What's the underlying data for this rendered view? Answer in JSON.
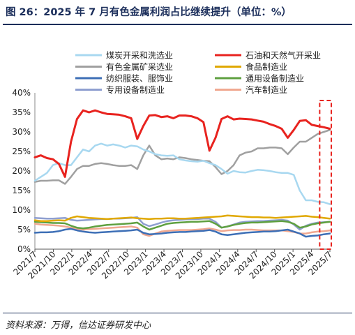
{
  "header": {
    "title": "图 26：2025 年 7 月有色金属利润占比继续提升（单位：%）"
  },
  "footer": {
    "source": "资料来源：万得，信达证券研发中心"
  },
  "chart_data": {
    "type": "line",
    "title": "",
    "xlabel": "",
    "ylabel": "",
    "ylim": [
      0,
      40
    ],
    "y_ticks": [
      "0%",
      "5%",
      "10%",
      "15%",
      "20%",
      "25%",
      "30%",
      "35%",
      "40%"
    ],
    "x_ticks": [
      "2021/7",
      "2021/10",
      "2022/1",
      "2022/4",
      "2022/7",
      "2022/10",
      "2023/1",
      "2023/4",
      "2023/7",
      "2023/10",
      "2024/1",
      "2024/4",
      "2024/7",
      "2024/10",
      "2025/1",
      "2025/4",
      "2025/7"
    ],
    "legend_placement": "top",
    "highlight": "dashed red box around the last two months",
    "series": [
      {
        "name": "煤炭开采和洗选业",
        "color": "#a8d8f0",
        "values": [
          17.5,
          18.5,
          19.5,
          21.5,
          22,
          21.5,
          21.5,
          23.5,
          25.5,
          25,
          26.5,
          27,
          26.5,
          26.8,
          26.5,
          26,
          26.5,
          26.3,
          25.5,
          25,
          24.3,
          24,
          23.9,
          24,
          23,
          22.7,
          22.5,
          22.4,
          22.6,
          22,
          21.5,
          20.5,
          19.3,
          20,
          19.7,
          19.6,
          20,
          20.3,
          20.2,
          20,
          19.7,
          19.5,
          19.5,
          19,
          15,
          12.5,
          12.5,
          12.1,
          12,
          11.5
        ]
      },
      {
        "name": "石油和天然气开采业",
        "color": "#e8231f",
        "values": [
          23.5,
          24,
          23.3,
          23,
          21.8,
          18.5,
          27.5,
          33.3,
          35.5,
          35,
          35.5,
          35,
          34.6,
          34.5,
          34.4,
          34,
          33.5,
          28.2,
          31.5,
          34.2,
          34.3,
          33.8,
          34,
          33.5,
          34.2,
          34.2,
          34,
          33.5,
          32.5,
          25.2,
          28.5,
          33.3,
          34,
          33.2,
          33.4,
          33.3,
          33.2,
          32.9,
          32.6,
          32,
          31.5,
          30.8,
          28.5,
          30.5,
          32.8,
          33,
          31.8,
          31.5,
          31.2,
          30.8
        ]
      },
      {
        "name": "有色金属矿采选业",
        "color": "#a0a0a0",
        "values": [
          17.2,
          17.5,
          17.5,
          17.6,
          17.6,
          16.7,
          18.5,
          20.5,
          21.3,
          21.3,
          21.8,
          22,
          21.8,
          21.5,
          21.3,
          21.3,
          21.5,
          20.5,
          24,
          26.5,
          24,
          23,
          23.2,
          23,
          23.5,
          23.3,
          23,
          22.8,
          22.6,
          22.5,
          21,
          19.2,
          20,
          21.5,
          24,
          24.7,
          25,
          25.8,
          25.8,
          26,
          26,
          25.8,
          24.3,
          26,
          27.5,
          27.5,
          28.5,
          29.5,
          30,
          30.5
        ]
      },
      {
        "name": "食品制造业",
        "color": "#e0a800",
        "values": [
          7.4,
          7.2,
          7.2,
          7.3,
          7.4,
          7.3,
          8.0,
          8.4,
          8.2,
          8.0,
          7.9,
          7.8,
          7.7,
          7.8,
          7.9,
          8.0,
          8.1,
          7.9,
          7.8,
          7.7,
          7.8,
          7.8,
          7.9,
          7.9,
          7.8,
          7.8,
          7.9,
          8.0,
          8.1,
          8.2,
          8.3,
          8.4,
          8.6,
          8.5,
          8.4,
          8.3,
          8.2,
          8.2,
          8.1,
          8.1,
          8.0,
          8.1,
          8.2,
          8.3,
          8.4,
          8.5,
          8.3,
          8.2,
          8.0,
          7.8
        ]
      },
      {
        "name": "纺织服装、服饰业",
        "color": "#3d6fb6",
        "values": [
          4.2,
          4.3,
          4.3,
          4.4,
          4.6,
          5.0,
          5.2,
          4.8,
          4.5,
          4.3,
          4.2,
          4.3,
          4.4,
          4.5,
          4.6,
          4.7,
          4.8,
          5.0,
          4.2,
          3.8,
          3.9,
          4.0,
          4.2,
          4.3,
          4.4,
          4.4,
          4.5,
          4.6,
          4.7,
          4.9,
          4.5,
          3.8,
          3.6,
          3.8,
          4.0,
          4.2,
          4.3,
          4.4,
          4.5,
          4.5,
          4.6,
          4.8,
          5.0,
          4.5,
          4.0,
          3.2,
          3.4,
          3.5,
          3.8,
          4.0
        ]
      },
      {
        "name": "通用设备制造业",
        "color": "#5fa040",
        "values": [
          7.0,
          6.9,
          6.8,
          6.7,
          6.7,
          6.6,
          6.0,
          5.5,
          5.3,
          5.5,
          5.8,
          6.0,
          6.2,
          6.3,
          6.4,
          6.5,
          6.6,
          6.8,
          5.8,
          5.0,
          5.5,
          6.0,
          6.5,
          6.7,
          6.8,
          6.9,
          7.0,
          7.0,
          7.1,
          7.2,
          6.5,
          5.5,
          5.8,
          6.2,
          6.5,
          6.7,
          6.8,
          6.8,
          6.9,
          7.0,
          7.1,
          7.2,
          7.0,
          6.5,
          5.5,
          5.8,
          6.3,
          6.6,
          6.8,
          7.0
        ]
      },
      {
        "name": "专用设备制造业",
        "color": "#8f9fd0",
        "values": [
          8.0,
          7.9,
          7.8,
          7.8,
          7.9,
          8.0,
          7.5,
          7.3,
          7.4,
          7.5,
          7.6,
          7.7,
          7.7,
          7.8,
          7.8,
          7.9,
          8.0,
          8.2,
          6.5,
          5.9,
          6.3,
          6.8,
          7.2,
          7.4,
          7.5,
          7.6,
          7.7,
          7.7,
          7.8,
          7.8,
          7.0,
          5.5,
          5.8,
          6.3,
          6.8,
          7.0,
          7.1,
          7.2,
          7.2,
          7.3,
          7.4,
          7.5,
          7.3,
          6.3,
          5.0,
          6.0,
          6.5,
          6.8,
          6.9,
          7.0
        ]
      },
      {
        "name": "汽车制造业",
        "color": "#f0a890",
        "values": [
          6.5,
          6.3,
          6.2,
          6.1,
          6.0,
          5.8,
          5.5,
          5.2,
          5.0,
          5.1,
          5.2,
          5.3,
          5.4,
          5.5,
          5.6,
          5.7,
          5.8,
          5.5,
          3.8,
          3.4,
          4.0,
          4.5,
          4.7,
          4.8,
          4.9,
          4.9,
          4.9,
          5.0,
          5.1,
          5.3,
          5.0,
          4.6,
          4.8,
          4.9,
          4.9,
          5.0,
          5.0,
          4.9,
          4.8,
          4.8,
          4.8,
          4.8,
          4.6,
          4.4,
          4.0,
          4.0,
          4.3,
          4.5,
          4.6,
          4.8
        ]
      }
    ]
  }
}
